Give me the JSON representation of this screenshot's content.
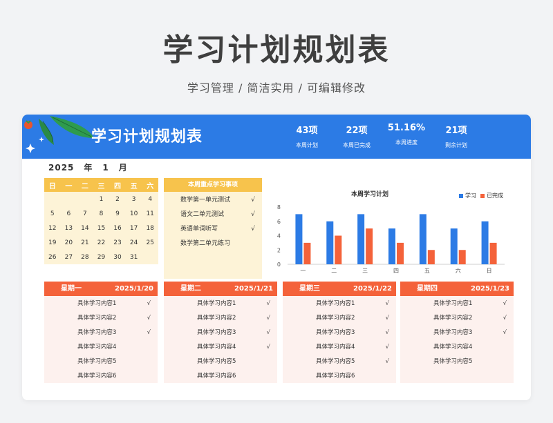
{
  "header": {
    "title": "学习计划规划表",
    "subtitle": "学习管理 /  简洁实用  /  可编辑修改"
  },
  "banner": {
    "title": "学习计划规划表",
    "stats": [
      {
        "value": "43项",
        "label": "本周计划"
      },
      {
        "value": "22项",
        "label": "本周已完成"
      },
      {
        "value": "51.16%",
        "label": "本周进度"
      },
      {
        "value": "21项",
        "label": "剩余计划"
      }
    ]
  },
  "date": {
    "year": "2025",
    "year_unit": "年",
    "month": "1",
    "month_unit": "月"
  },
  "calendar": {
    "weekdays": [
      "日",
      "一",
      "二",
      "三",
      "四",
      "五",
      "六"
    ],
    "rows": [
      [
        "",
        "",
        "",
        "1",
        "2",
        "3",
        "4"
      ],
      [
        "5",
        "6",
        "7",
        "8",
        "9",
        "10",
        "11"
      ],
      [
        "12",
        "13",
        "14",
        "15",
        "16",
        "17",
        "18"
      ],
      [
        "19",
        "20",
        "21",
        "22",
        "23",
        "24",
        "25"
      ],
      [
        "26",
        "27",
        "28",
        "29",
        "30",
        "31",
        ""
      ]
    ]
  },
  "focus": {
    "title": "本周重点学习事项",
    "items": [
      {
        "text": "数学第一单元测试",
        "check": "√"
      },
      {
        "text": "语文二单元测试",
        "check": "√"
      },
      {
        "text": "英语单词听写",
        "check": "√"
      },
      {
        "text": "数学第二单元练习",
        "check": ""
      }
    ]
  },
  "colors": {
    "blue": "#2c7be5",
    "orange": "#f4623a",
    "yellow": "#f7c34c"
  },
  "chart_data": {
    "type": "bar",
    "title": "本周学习计划",
    "categories": [
      "一",
      "二",
      "三",
      "四",
      "五",
      "六",
      "日"
    ],
    "series": [
      {
        "name": "学习",
        "color": "#2c7be5",
        "values": [
          7,
          6,
          7,
          5,
          7,
          5,
          6
        ]
      },
      {
        "name": "已完成",
        "color": "#f4623a",
        "values": [
          3,
          4,
          5,
          3,
          2,
          2,
          3
        ]
      }
    ],
    "yticks": [
      "0",
      "2",
      "4",
      "6",
      "8"
    ],
    "ylim": [
      0,
      8
    ],
    "legend": "top-right",
    "grid": false
  },
  "days": [
    {
      "name": "星期一",
      "date": "2025/1/20",
      "items": [
        {
          "text": "具体学习内容1",
          "check": "√"
        },
        {
          "text": "具体学习内容2",
          "check": "√"
        },
        {
          "text": "具体学习内容3",
          "check": "√"
        },
        {
          "text": "具体学习内容4",
          "check": ""
        },
        {
          "text": "具体学习内容5",
          "check": ""
        },
        {
          "text": "具体学习内容6",
          "check": ""
        }
      ]
    },
    {
      "name": "星期二",
      "date": "2025/1/21",
      "items": [
        {
          "text": "具体学习内容1",
          "check": "√"
        },
        {
          "text": "具体学习内容2",
          "check": "√"
        },
        {
          "text": "具体学习内容3",
          "check": "√"
        },
        {
          "text": "具体学习内容4",
          "check": "√"
        },
        {
          "text": "具体学习内容5",
          "check": ""
        },
        {
          "text": "具体学习内容6",
          "check": ""
        }
      ]
    },
    {
      "name": "星期三",
      "date": "2025/1/22",
      "items": [
        {
          "text": "具体学习内容1",
          "check": "√"
        },
        {
          "text": "具体学习内容2",
          "check": "√"
        },
        {
          "text": "具体学习内容3",
          "check": "√"
        },
        {
          "text": "具体学习内容4",
          "check": "√"
        },
        {
          "text": "具体学习内容5",
          "check": "√"
        },
        {
          "text": "具体学习内容6",
          "check": ""
        }
      ]
    },
    {
      "name": "星期四",
      "date": "2025/1/23",
      "items": [
        {
          "text": "具体学习内容1",
          "check": "√"
        },
        {
          "text": "具体学习内容2",
          "check": "√"
        },
        {
          "text": "具体学习内容3",
          "check": "√"
        },
        {
          "text": "具体学习内容4",
          "check": ""
        },
        {
          "text": "具体学习内容5",
          "check": ""
        }
      ]
    }
  ]
}
